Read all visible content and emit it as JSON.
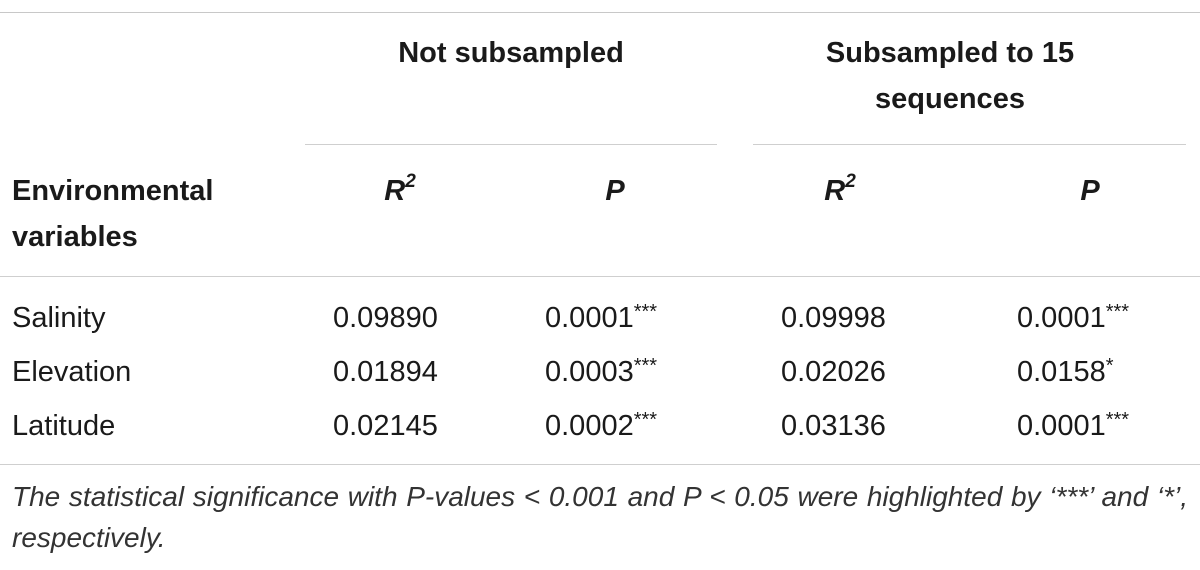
{
  "table": {
    "group_headers": [
      {
        "label": "Not subsampled"
      },
      {
        "label": "Subsampled to 15 sequences"
      }
    ],
    "row_header_label": "Environmental variables",
    "sub_headers": [
      {
        "base": "R",
        "sup": "2"
      },
      {
        "base": "P",
        "sup": ""
      },
      {
        "base": "R",
        "sup": "2"
      },
      {
        "base": "P",
        "sup": ""
      }
    ],
    "rows": [
      {
        "variable": "Salinity",
        "cells": [
          {
            "value": "0.09890",
            "sig": ""
          },
          {
            "value": "0.0001",
            "sig": "***"
          },
          {
            "value": "0.09998",
            "sig": ""
          },
          {
            "value": "0.0001",
            "sig": "***"
          }
        ]
      },
      {
        "variable": "Elevation",
        "cells": [
          {
            "value": "0.01894",
            "sig": ""
          },
          {
            "value": "0.0003",
            "sig": "***"
          },
          {
            "value": "0.02026",
            "sig": ""
          },
          {
            "value": "0.0158",
            "sig": "*"
          }
        ]
      },
      {
        "variable": "Latitude",
        "cells": [
          {
            "value": "0.02145",
            "sig": ""
          },
          {
            "value": "0.0002",
            "sig": "***"
          },
          {
            "value": "0.03136",
            "sig": ""
          },
          {
            "value": "0.0001",
            "sig": "***"
          }
        ]
      }
    ],
    "footnote": "The statistical significance with P-values < 0.001 and P < 0.05 were highlighted by ‘***’ and ‘*’, respectively."
  }
}
